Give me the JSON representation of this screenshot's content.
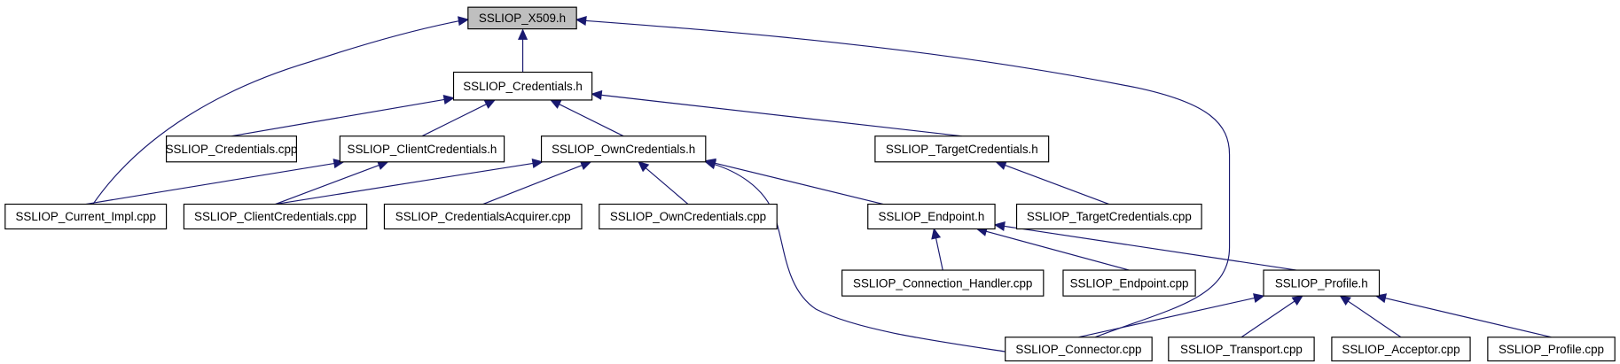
{
  "graph": {
    "type": "include-dependency-graph",
    "root": "x509_h",
    "colors": {
      "edge": "#191970",
      "root_fill": "#bfbfbf",
      "node_fill": "#ffffff",
      "border": "#000000"
    },
    "nodes": [
      {
        "id": "x509_h",
        "label": "SSLIOP_X509.h"
      },
      {
        "id": "cred_h",
        "label": "SSLIOP_Credentials.h"
      },
      {
        "id": "cred_cpp",
        "label": "SSLIOP_Credentials.cpp"
      },
      {
        "id": "clientcred_h",
        "label": "SSLIOP_ClientCredentials.h"
      },
      {
        "id": "owncred_h",
        "label": "SSLIOP_OwnCredentials.h"
      },
      {
        "id": "targetcred_h",
        "label": "SSLIOP_TargetCredentials.h"
      },
      {
        "id": "current_impl_cpp",
        "label": "SSLIOP_Current_Impl.cpp"
      },
      {
        "id": "clientcred_cpp",
        "label": "SSLIOP_ClientCredentials.cpp"
      },
      {
        "id": "credacq_cpp",
        "label": "SSLIOP_CredentialsAcquirer.cpp"
      },
      {
        "id": "owncred_cpp",
        "label": "SSLIOP_OwnCredentials.cpp"
      },
      {
        "id": "endpoint_h",
        "label": "SSLIOP_Endpoint.h"
      },
      {
        "id": "targetcred_cpp",
        "label": "SSLIOP_TargetCredentials.cpp"
      },
      {
        "id": "connhandler_cpp",
        "label": "SSLIOP_Connection_Handler.cpp"
      },
      {
        "id": "endpoint_cpp",
        "label": "SSLIOP_Endpoint.cpp"
      },
      {
        "id": "profile_h",
        "label": "SSLIOP_Profile.h"
      },
      {
        "id": "connector_cpp",
        "label": "SSLIOP_Connector.cpp"
      },
      {
        "id": "transport_cpp",
        "label": "SSLIOP_Transport.cpp"
      },
      {
        "id": "acceptor_cpp",
        "label": "SSLIOP_Acceptor.cpp"
      },
      {
        "id": "profile_cpp",
        "label": "SSLIOP_Profile.cpp"
      }
    ],
    "edges": [
      {
        "from": "cred_h",
        "to": "x509_h"
      },
      {
        "from": "current_impl_cpp",
        "to": "x509_h"
      },
      {
        "from": "connector_cpp",
        "to": "x509_h"
      },
      {
        "from": "cred_cpp",
        "to": "cred_h"
      },
      {
        "from": "clientcred_h",
        "to": "cred_h"
      },
      {
        "from": "owncred_h",
        "to": "cred_h"
      },
      {
        "from": "targetcred_h",
        "to": "cred_h"
      },
      {
        "from": "current_impl_cpp",
        "to": "clientcred_h"
      },
      {
        "from": "clientcred_cpp",
        "to": "clientcred_h"
      },
      {
        "from": "clientcred_cpp",
        "to": "owncred_h"
      },
      {
        "from": "credacq_cpp",
        "to": "owncred_h"
      },
      {
        "from": "owncred_cpp",
        "to": "owncred_h"
      },
      {
        "from": "endpoint_h",
        "to": "owncred_h"
      },
      {
        "from": "connector_cpp",
        "to": "owncred_h"
      },
      {
        "from": "targetcred_cpp",
        "to": "targetcred_h"
      },
      {
        "from": "connhandler_cpp",
        "to": "endpoint_h"
      },
      {
        "from": "endpoint_cpp",
        "to": "endpoint_h"
      },
      {
        "from": "profile_h",
        "to": "endpoint_h"
      },
      {
        "from": "connector_cpp",
        "to": "profile_h"
      },
      {
        "from": "transport_cpp",
        "to": "profile_h"
      },
      {
        "from": "acceptor_cpp",
        "to": "profile_h"
      },
      {
        "from": "profile_cpp",
        "to": "profile_h"
      }
    ]
  }
}
